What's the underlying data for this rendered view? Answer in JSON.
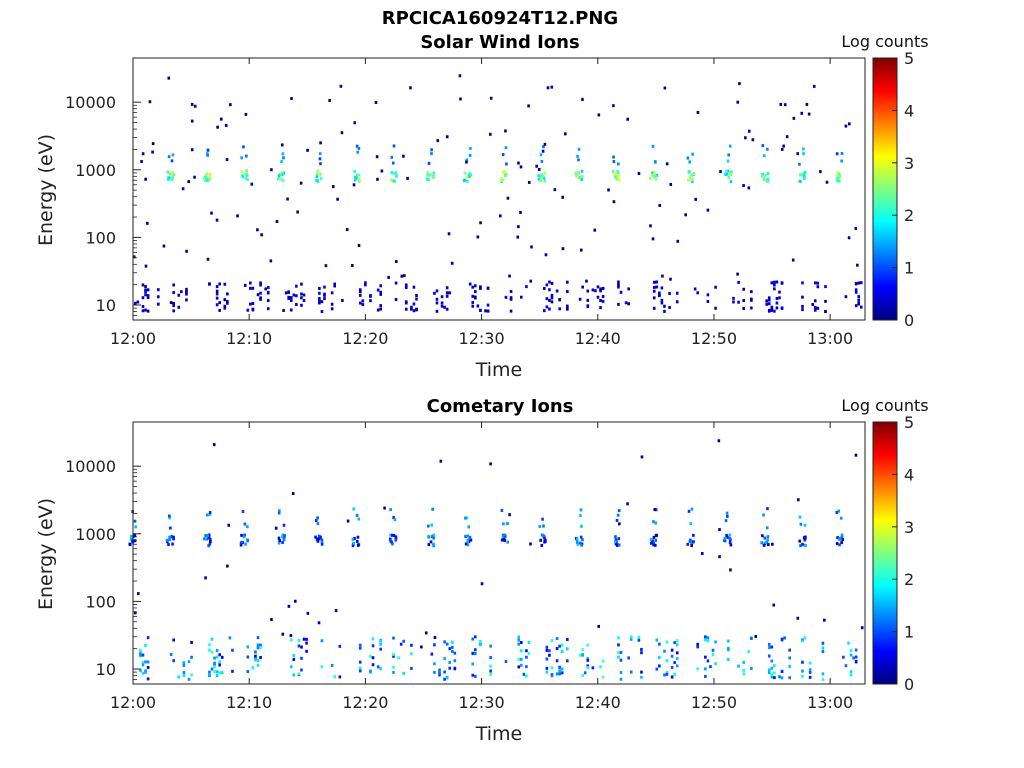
{
  "figure_title": "RPCICA160924T12.PNG",
  "colors": {
    "colormap": [
      "#00007f",
      "#0000ff",
      "#007fff",
      "#00ffff",
      "#7fff7f",
      "#ffff00",
      "#ff7f00",
      "#ff0000",
      "#7f0000"
    ],
    "background": "#ffffff",
    "axis": "#000000"
  },
  "chart_data": [
    {
      "type": "heatmap",
      "title": "Solar Wind Ions",
      "xlabel": "Time",
      "ylabel": "Energy (eV)",
      "x_ticks": [
        "12:00",
        "12:10",
        "12:20",
        "12:30",
        "12:40",
        "12:50",
        "13:00"
      ],
      "y_ticks": [
        "10",
        "100",
        "1000",
        "10000"
      ],
      "y_scale": "log",
      "ylim": [
        6,
        45000
      ],
      "xlim_minutes": [
        0,
        63
      ],
      "colorbar": {
        "label": "Log counts",
        "ticks": [
          "0",
          "1",
          "2",
          "3",
          "4",
          "5"
        ],
        "range": [
          0,
          5
        ]
      },
      "beam_energy_eV": 800,
      "beam_times_min": [
        3.2,
        6.4,
        9.6,
        12.8,
        16.0,
        19.2,
        22.4,
        25.6,
        28.8,
        32.0,
        35.2,
        38.4,
        41.6,
        44.8,
        48.0,
        51.2,
        54.4,
        57.6,
        60.8
      ],
      "beam_peak_log_counts": 3,
      "low_energy_band_eV": [
        8,
        22
      ],
      "low_energy_log_counts": 0.5
    },
    {
      "type": "heatmap",
      "title": "Cometary Ions",
      "xlabel": "Time",
      "ylabel": "Energy (eV)",
      "x_ticks": [
        "12:00",
        "12:10",
        "12:20",
        "12:30",
        "12:40",
        "12:50",
        "13:00"
      ],
      "y_ticks": [
        "10",
        "100",
        "1000",
        "10000"
      ],
      "y_scale": "log",
      "ylim": [
        6,
        45000
      ],
      "xlim_minutes": [
        0,
        63
      ],
      "colorbar": {
        "label": "Log counts",
        "ticks": [
          "0",
          "1",
          "2",
          "3",
          "4",
          "5"
        ],
        "range": [
          0,
          5
        ]
      },
      "beam_energy_eV": 800,
      "beam_times_min": [
        0,
        3.2,
        6.4,
        9.6,
        12.8,
        16.0,
        19.2,
        22.4,
        25.6,
        28.8,
        32.0,
        35.2,
        38.4,
        41.6,
        44.8,
        48.0,
        51.2,
        54.4,
        57.6,
        60.8
      ],
      "beam_peak_log_counts": 1.7,
      "low_energy_band_eV": [
        7,
        30
      ],
      "low_energy_log_counts": 1.8
    }
  ]
}
